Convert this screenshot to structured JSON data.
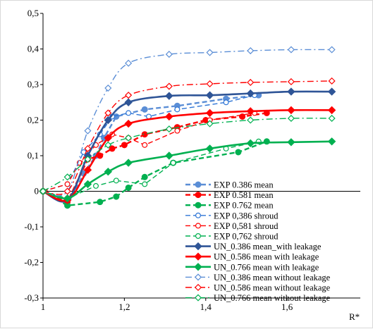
{
  "chart_data": {
    "type": "line",
    "xlabel": "R*",
    "xlim": [
      1.0,
      1.78
    ],
    "ylim": [
      -0.3,
      0.5
    ],
    "x_ticks": [
      1.0,
      1.2,
      1.4,
      1.6
    ],
    "x_tick_labels": [
      "1",
      "1,2",
      "1,4",
      "1,6"
    ],
    "y_ticks": [
      -0.3,
      -0.2,
      -0.1,
      0.0,
      0.1,
      0.2,
      0.3,
      0.4,
      0.5
    ],
    "y_tick_labels": [
      "-0,3",
      "-0,2",
      "-0,1",
      "0",
      "0,1",
      "0,2",
      "0,3",
      "0,4",
      "0,5"
    ],
    "grid": false,
    "legend_position": "bottom-right",
    "series": [
      {
        "name": " EXP 0.386 mean",
        "color": "#5b8ed6",
        "dash": "dash",
        "marker": "filled-circle",
        "smooth": false,
        "x": [
          1.0,
          1.06,
          1.1,
          1.13,
          1.15,
          1.18,
          1.25,
          1.33,
          1.45,
          1.53
        ],
        "y": [
          0.0,
          -0.04,
          0.05,
          0.1,
          0.15,
          0.21,
          0.23,
          0.24,
          0.26,
          0.27
        ]
      },
      {
        "name": "EXP 0.581 mean",
        "color": "#ff0000",
        "dash": "dash",
        "marker": "filled-circle",
        "smooth": false,
        "x": [
          1.0,
          1.06,
          1.11,
          1.14,
          1.17,
          1.2,
          1.25,
          1.33,
          1.4,
          1.49,
          1.55
        ],
        "y": [
          0.0,
          -0.03,
          0.09,
          0.1,
          0.12,
          0.13,
          0.16,
          0.18,
          0.2,
          0.21,
          0.22
        ]
      },
      {
        "name": "EXP 0.762 mean",
        "color": "#00b050",
        "dash": "dash",
        "marker": "filled-circle",
        "smooth": false,
        "x": [
          1.0,
          1.06,
          1.14,
          1.18,
          1.21,
          1.25,
          1.32,
          1.48,
          1.55
        ],
        "y": [
          0.0,
          -0.04,
          -0.03,
          -0.015,
          0.01,
          0.04,
          0.08,
          0.11,
          0.14
        ]
      },
      {
        "name": "EXP 0,386 shroud",
        "color": "#2e75d6",
        "dash": "dash",
        "marker": "open-circle",
        "smooth": false,
        "x": [
          1.0,
          1.06,
          1.1,
          1.14,
          1.17,
          1.21,
          1.26,
          1.33,
          1.45,
          1.52
        ],
        "y": [
          0.0,
          0.02,
          0.11,
          0.16,
          0.21,
          0.22,
          0.21,
          0.23,
          0.25,
          0.27
        ]
      },
      {
        "name": "EXP 0,581 shroud",
        "color": "#ff0000",
        "dash": "dash",
        "marker": "open-circle",
        "smooth": false,
        "x": [
          1.0,
          1.06,
          1.09,
          1.13,
          1.17,
          1.21,
          1.25,
          1.33,
          1.41,
          1.52
        ],
        "y": [
          0.0,
          0.02,
          0.08,
          0.13,
          0.16,
          0.15,
          0.13,
          0.17,
          0.2,
          0.22
        ]
      },
      {
        "name": "EXP 0,762 shroud",
        "color": "#00b050",
        "dash": "dash",
        "marker": "open-circle",
        "smooth": false,
        "x": [
          1.0,
          1.06,
          1.13,
          1.18,
          1.25,
          1.32,
          1.45,
          1.53
        ],
        "y": [
          0.0,
          -0.02,
          0.015,
          0.03,
          0.02,
          0.08,
          0.12,
          0.14
        ]
      },
      {
        "name": "UN_0.386 mean_with leakage",
        "color": "#2f5597",
        "dash": "solid",
        "marker": "filled-diamond",
        "smooth": true,
        "x": [
          1.0,
          1.06,
          1.11,
          1.16,
          1.21,
          1.31,
          1.41,
          1.51,
          1.61,
          1.71
        ],
        "y": [
          0.0,
          -0.025,
          0.1,
          0.2,
          0.25,
          0.268,
          0.27,
          0.275,
          0.28,
          0.28
        ]
      },
      {
        "name": "UN_0.586 mean with leakage",
        "color": "#ff0000",
        "dash": "solid",
        "marker": "filled-diamond",
        "smooth": true,
        "x": [
          1.0,
          1.06,
          1.11,
          1.16,
          1.21,
          1.31,
          1.41,
          1.51,
          1.61,
          1.71
        ],
        "y": [
          0.0,
          -0.025,
          0.06,
          0.15,
          0.19,
          0.21,
          0.22,
          0.225,
          0.228,
          0.228
        ]
      },
      {
        "name": "UN_0.766 mean with leakage",
        "color": "#00b050",
        "dash": "solid",
        "marker": "filled-diamond",
        "smooth": true,
        "x": [
          1.0,
          1.06,
          1.11,
          1.16,
          1.21,
          1.31,
          1.41,
          1.51,
          1.61,
          1.71
        ],
        "y": [
          0.0,
          -0.02,
          0.02,
          0.055,
          0.08,
          0.1,
          0.12,
          0.135,
          0.138,
          0.14
        ]
      },
      {
        "name": "UN_0.386 mean without leakage",
        "color": "#5b8ed6",
        "dash": "dashdot",
        "marker": "open-diamond",
        "smooth": true,
        "x": [
          1.0,
          1.06,
          1.11,
          1.16,
          1.21,
          1.31,
          1.41,
          1.51,
          1.61,
          1.71
        ],
        "y": [
          0.0,
          0.0,
          0.17,
          0.29,
          0.36,
          0.385,
          0.39,
          0.395,
          0.398,
          0.398
        ]
      },
      {
        "name": "UN_0.586 mean without leakage",
        "color": "#ff0000",
        "dash": "dashdot",
        "marker": "open-diamond",
        "smooth": true,
        "x": [
          1.0,
          1.06,
          1.11,
          1.16,
          1.21,
          1.31,
          1.41,
          1.51,
          1.61,
          1.71
        ],
        "y": [
          0.0,
          0.0,
          0.12,
          0.22,
          0.27,
          0.295,
          0.302,
          0.306,
          0.308,
          0.31
        ]
      },
      {
        "name": "UN_0.766 mean without leakage",
        "color": "#00b050",
        "dash": "dashdot",
        "marker": "open-diamond",
        "smooth": true,
        "x": [
          1.0,
          1.06,
          1.11,
          1.16,
          1.21,
          1.31,
          1.41,
          1.51,
          1.61,
          1.71
        ],
        "y": [
          0.0,
          0.04,
          0.09,
          0.13,
          0.15,
          0.175,
          0.19,
          0.2,
          0.205,
          0.205
        ]
      }
    ]
  }
}
